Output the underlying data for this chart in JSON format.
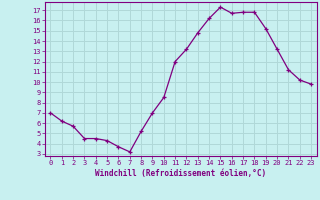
{
  "x": [
    0,
    1,
    2,
    3,
    4,
    5,
    6,
    7,
    8,
    9,
    10,
    11,
    12,
    13,
    14,
    15,
    16,
    17,
    18,
    19,
    20,
    21,
    22,
    23
  ],
  "y": [
    7.0,
    6.2,
    5.7,
    4.5,
    4.5,
    4.3,
    3.7,
    3.2,
    5.2,
    7.0,
    8.5,
    12.0,
    13.2,
    14.8,
    16.2,
    17.3,
    16.7,
    16.8,
    16.8,
    15.2,
    13.2,
    11.2,
    10.2,
    9.8
  ],
  "xlabel": "Windchill (Refroidissement éolien,°C)",
  "xlim": [
    -0.5,
    23.5
  ],
  "ylim": [
    2.8,
    17.8
  ],
  "yticks": [
    3,
    4,
    5,
    6,
    7,
    8,
    9,
    10,
    11,
    12,
    13,
    14,
    15,
    16,
    17
  ],
  "xticks": [
    0,
    1,
    2,
    3,
    4,
    5,
    6,
    7,
    8,
    9,
    10,
    11,
    12,
    13,
    14,
    15,
    16,
    17,
    18,
    19,
    20,
    21,
    22,
    23
  ],
  "line_color": "#800080",
  "marker": "+",
  "bg_color": "#c8f0f0",
  "grid_color": "#b0d8d8",
  "axis_color": "#800080",
  "tick_color": "#800080",
  "xlabel_color": "#800080"
}
